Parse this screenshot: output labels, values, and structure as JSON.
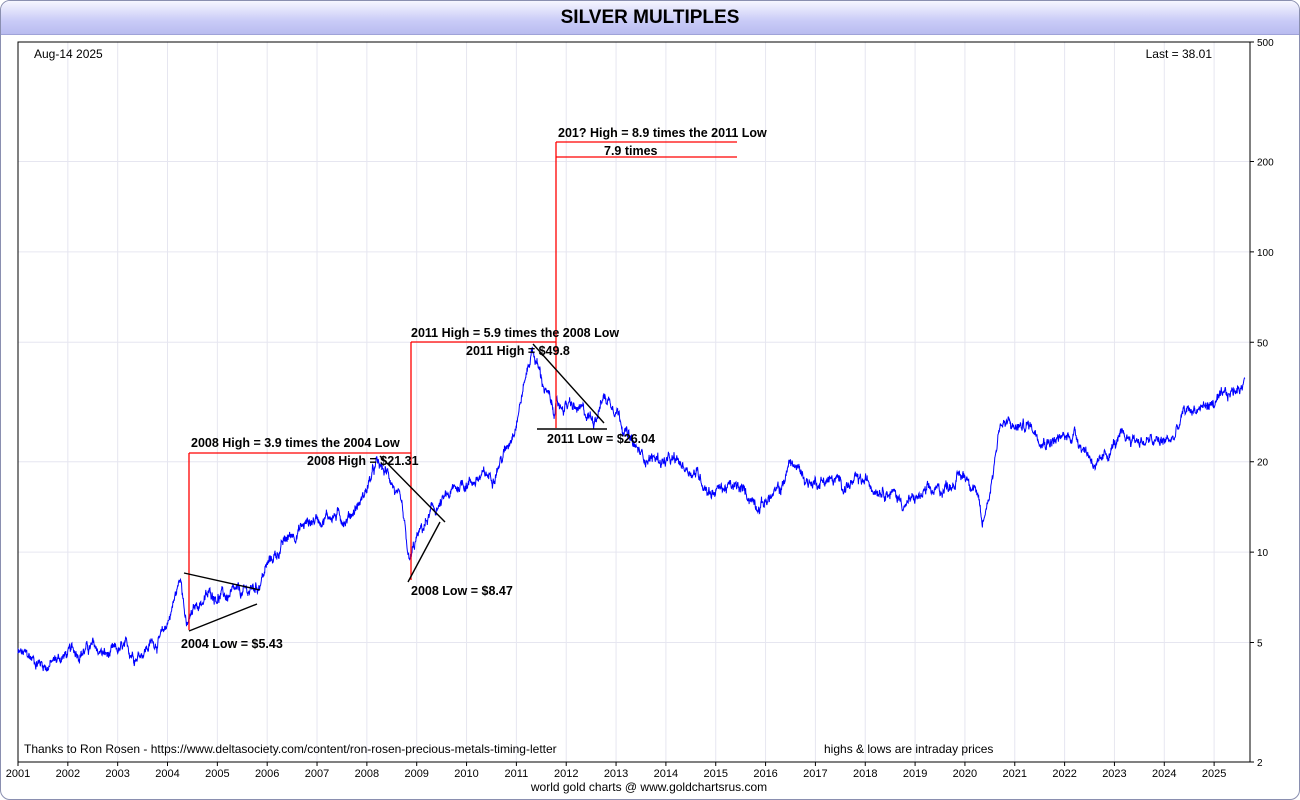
{
  "title": "SILVER MULTIPLES",
  "date_label": "Aug-14  2025",
  "last_label": "Last = 38.01",
  "credit_text": "Thanks to Ron Rosen - https://www.deltasociety.com/content/ron-rosen-precious-metals-timing-letter",
  "note_text": "highs & lows are intraday prices",
  "footer_text": "world gold charts @ www.goldchartsrus.com",
  "colors": {
    "line": "#0000ff",
    "annotation": "#ff0000",
    "trendline": "#000000",
    "grid": "#e6e6f0"
  },
  "chart_data": {
    "type": "line",
    "y_scale": "log",
    "ylim": [
      2,
      500
    ],
    "xlim": [
      2001.0,
      2025.72
    ],
    "yticks": [
      2,
      5,
      10,
      20,
      50,
      100,
      200,
      500
    ],
    "ytick_labels": [
      "2",
      "5",
      "10",
      "20",
      "50",
      "100",
      "200",
      "500"
    ],
    "xticks": [
      2001,
      2002,
      2003,
      2004,
      2005,
      2006,
      2007,
      2008,
      2009,
      2010,
      2011,
      2012,
      2013,
      2014,
      2015,
      2016,
      2017,
      2018,
      2019,
      2020,
      2021,
      2022,
      2023,
      2024,
      2025
    ],
    "xtick_labels": [
      "2001",
      "2002",
      "2003",
      "2004",
      "2005",
      "2006",
      "2007",
      "2008",
      "2009",
      "2010",
      "2011",
      "2012",
      "2013",
      "2014",
      "2015",
      "2016",
      "2017",
      "2018",
      "2019",
      "2020",
      "2021",
      "2022",
      "2023",
      "2024",
      "2025"
    ],
    "grid": true,
    "series": [
      {
        "x": [
          2001.0,
          2001.3,
          2001.6,
          2001.9,
          2002.2,
          2002.5,
          2002.8,
          2003.1,
          2003.4,
          2003.7,
          2003.9,
          2004.05,
          2004.28,
          2004.38,
          2004.6,
          2004.9,
          2005.2,
          2005.5,
          2005.8,
          2006.0,
          2006.3,
          2006.5,
          2006.8,
          2007.0,
          2007.3,
          2007.6,
          2007.9,
          2008.2,
          2008.5,
          2008.7,
          2008.85,
          2009.0,
          2009.3,
          2009.6,
          2009.9,
          2010.2,
          2010.5,
          2010.8,
          2011.0,
          2011.32,
          2011.5,
          2011.72,
          2012.0,
          2012.3,
          2012.55,
          2012.75,
          2013.0,
          2013.3,
          2013.5,
          2013.8,
          2014.0,
          2014.3,
          2014.6,
          2014.9,
          2015.2,
          2015.5,
          2015.9,
          2016.3,
          2016.5,
          2016.9,
          2017.2,
          2017.6,
          2018.0,
          2018.4,
          2018.8,
          2019.2,
          2019.5,
          2019.8,
          2020.0,
          2020.2,
          2020.35,
          2020.55,
          2020.7,
          2021.0,
          2021.3,
          2021.6,
          2021.9,
          2022.2,
          2022.5,
          2022.7,
          2023.0,
          2023.3,
          2023.6,
          2023.9,
          2024.2,
          2024.4,
          2024.6,
          2024.9,
          2025.2,
          2025.45,
          2025.62
        ],
        "values": [
          4.6,
          4.4,
          4.2,
          4.5,
          4.7,
          4.8,
          4.5,
          4.7,
          4.6,
          5.0,
          5.2,
          6.2,
          8.4,
          5.6,
          6.7,
          7.3,
          7.1,
          7.2,
          7.7,
          9.0,
          10.5,
          11.5,
          12.5,
          13.0,
          13.3,
          13.0,
          15.0,
          19.5,
          17.5,
          13.5,
          9.0,
          11.0,
          13.5,
          15.0,
          17.0,
          17.5,
          18.0,
          22.0,
          28.0,
          48.0,
          38.0,
          30.0,
          31.0,
          29.0,
          28.0,
          33.0,
          31.0,
          23.0,
          21.0,
          20.5,
          20.0,
          19.5,
          18.5,
          16.0,
          16.5,
          16.0,
          14.5,
          16.0,
          20.0,
          17.0,
          17.5,
          16.8,
          17.0,
          16.5,
          14.5,
          15.5,
          16.0,
          17.5,
          18.0,
          17.0,
          12.0,
          18.0,
          27.0,
          26.0,
          26.5,
          24.0,
          23.5,
          25.0,
          21.0,
          19.0,
          23.0,
          24.0,
          23.5,
          23.0,
          24.0,
          29.0,
          30.0,
          31.0,
          32.0,
          35.0,
          38.01
        ]
      }
    ],
    "annotations": [
      {
        "label": "2008 High = 3.9 times the 2004 Low"
      },
      {
        "label": "2008 High = $21.31"
      },
      {
        "label": "2004 Low = $5.43"
      },
      {
        "label": "2011 High = 5.9 times the 2008 Low"
      },
      {
        "label": "2011 High = $49.8"
      },
      {
        "label": "2008 Low = $8.47"
      },
      {
        "label": "201? High = 8.9 times the 2011 Low"
      },
      {
        "label": "7.9 times"
      },
      {
        "label": "2011 Low = $26.04"
      }
    ]
  }
}
